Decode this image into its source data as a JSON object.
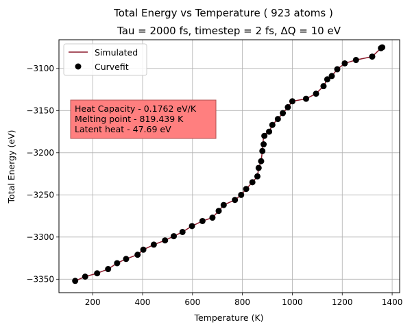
{
  "chart_data": {
    "type": "scatter",
    "title": "Total Energy vs Temperature ( 923 atoms )",
    "subtitle": "Tau = 2000 fs, timestep = 2 fs, ΔQ = 10 eV",
    "xlabel": "Temperature (K)",
    "ylabel": "Total Energy (eV)",
    "xlim": [
      65,
      1430
    ],
    "ylim": [
      -3366,
      -3066
    ],
    "xticks": [
      200,
      400,
      600,
      800,
      1000,
      1200,
      1400
    ],
    "yticks": [
      -3350,
      -3300,
      -3250,
      -3200,
      -3150,
      -3100
    ],
    "xtick_labels": [
      "200",
      "400",
      "600",
      "800",
      "1000",
      "1200",
      "1400"
    ],
    "ytick_labels": [
      "−3350",
      "−3300",
      "−3250",
      "−3200",
      "−3150",
      "−3100"
    ],
    "grid": true,
    "legend_position": "top-left",
    "legend": [
      {
        "label": "Simulated",
        "style": "line",
        "color": "#8b1a2b"
      },
      {
        "label": "Curvefit",
        "style": "marker",
        "color": "#000000"
      }
    ],
    "annotation": {
      "lines": [
        "Heat Capacity - 0.1762 eV/K",
        "Melting point - 819.439 K",
        "Latent heat - 47.69 eV"
      ],
      "background": "#ff7f7f"
    },
    "series": [
      {
        "name": "Simulated",
        "style": "line",
        "color": "#8b1a2b",
        "x": [
          130,
          170,
          218,
          262,
          298,
          334,
          380,
          403,
          445,
          490,
          525,
          560,
          598,
          640,
          680,
          705,
          725,
          770,
          795,
          815,
          840,
          860,
          865,
          875,
          880,
          882,
          885,
          888,
          907,
          920,
          942,
          962,
          982,
          1000,
          1055,
          1095,
          1125,
          1140,
          1158,
          1180,
          1210,
          1255,
          1320,
          1355,
          1360
        ],
        "y": [
          -3352,
          -3347,
          -3343,
          -3338,
          -3331,
          -3326,
          -3321,
          -3315,
          -3309,
          -3304,
          -3299,
          -3294,
          -3287,
          -3281,
          -3277,
          -3269,
          -3262,
          -3256,
          -3250,
          -3243,
          -3235,
          -3228,
          -3218,
          -3210,
          -3198,
          -3190,
          -3180,
          -3178,
          -3175,
          -3167,
          -3160,
          -3153,
          -3146,
          -3139,
          -3136,
          -3130,
          -3121,
          -3113,
          -3109,
          -3101,
          -3094,
          -3090,
          -3086,
          -3076,
          -3075
        ]
      },
      {
        "name": "Curvefit",
        "style": "marker",
        "color": "#000000",
        "x": [
          130,
          170,
          218,
          262,
          298,
          334,
          380,
          403,
          445,
          490,
          525,
          560,
          598,
          640,
          680,
          705,
          725,
          770,
          795,
          815,
          840,
          860,
          865,
          875,
          880,
          885,
          888,
          907,
          920,
          942,
          962,
          982,
          1000,
          1055,
          1095,
          1125,
          1140,
          1158,
          1180,
          1210,
          1255,
          1320,
          1355,
          1360
        ],
        "y": [
          -3352,
          -3347,
          -3343,
          -3338,
          -3331,
          -3326,
          -3321,
          -3315,
          -3309,
          -3304,
          -3299,
          -3294,
          -3287,
          -3281,
          -3277,
          -3269,
          -3262,
          -3256,
          -3250,
          -3243,
          -3235,
          -3228,
          -3218,
          -3210,
          -3198,
          -3190,
          -3180,
          -3175,
          -3167,
          -3160,
          -3153,
          -3146,
          -3139,
          -3136,
          -3130,
          -3121,
          -3113,
          -3109,
          -3101,
          -3094,
          -3090,
          -3086,
          -3076,
          -3075
        ]
      }
    ]
  }
}
